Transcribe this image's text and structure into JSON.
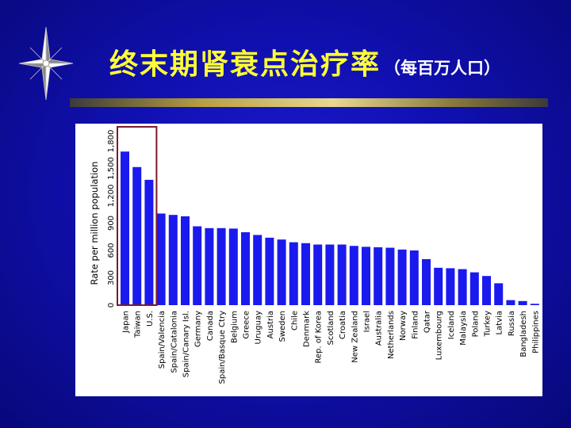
{
  "slide": {
    "title": "终末期肾衰点治疗率",
    "subtitle": "（每百万人口）"
  },
  "icons": {
    "compass": "compass-star-icon"
  },
  "colors": {
    "background": "#1010b0",
    "title": "#ffff33",
    "bar": "#1a1aee",
    "highlight_box": "#7a1a2a"
  },
  "chart_data": {
    "type": "bar",
    "ylabel": "Rate per million population",
    "ylim": [
      0,
      1800
    ],
    "yticks": [
      0,
      300,
      600,
      900,
      1200,
      1500,
      1800
    ],
    "yticklabels": [
      "0",
      "300",
      "600",
      "900",
      "1,200",
      "1,500",
      "1,800"
    ],
    "grid": false,
    "categories": [
      "Japan",
      "Taiwan",
      "U.S.",
      "Spain/Valencia",
      "Spain/Catalonia",
      "Spain/Canary Isl.",
      "Germany",
      "Canada",
      "Spain/Basque Ctry",
      "Belgium",
      "Greece",
      "Uruguay",
      "Austria",
      "Sweden",
      "Chile",
      "Denmark",
      "Rep. of Korea",
      "Scotland",
      "Croatia",
      "New Zealand",
      "Israel",
      "Australia",
      "Netherlands",
      "Norway",
      "Finland",
      "Qatar",
      "Luxembourg",
      "Iceland",
      "Malaysia",
      "Poland",
      "Turkey",
      "Latvia",
      "Russia",
      "Bangladesh",
      "Philippines"
    ],
    "values": [
      1685,
      1515,
      1375,
      1005,
      990,
      975,
      865,
      845,
      845,
      840,
      800,
      770,
      740,
      720,
      690,
      680,
      665,
      665,
      665,
      650,
      640,
      635,
      630,
      610,
      600,
      505,
      410,
      405,
      395,
      360,
      320,
      240,
      55,
      45,
      15
    ],
    "highlighted_categories": [
      "Japan",
      "Taiwan",
      "U.S."
    ]
  }
}
